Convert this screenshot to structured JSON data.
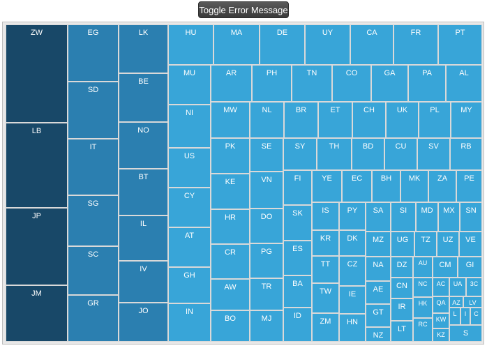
{
  "toolbar": {
    "toggle_label": "Toggle Error Message"
  },
  "chart_data": {
    "type": "treemap",
    "title": "",
    "colors": {
      "dark": "#184868",
      "mid": "#2b7fb0",
      "light": "#38a5d8"
    },
    "items": [
      "ZW",
      "LB",
      "JP",
      "JM",
      "EG",
      "SD",
      "IT",
      "SG",
      "SC",
      "GR",
      "LK",
      "BE",
      "NO",
      "BT",
      "IL",
      "IV",
      "JO",
      "HU",
      "MA",
      "DE",
      "UY",
      "CA",
      "FR",
      "PT",
      "MU",
      "NI",
      "US",
      "CY",
      "AT",
      "GH",
      "IN",
      "AR",
      "PH",
      "TN",
      "CO",
      "GA",
      "PA",
      "AL",
      "MW",
      "NL",
      "BR",
      "ET",
      "CH",
      "UK",
      "PL",
      "MY",
      "PK",
      "KE",
      "HR",
      "CR",
      "AW",
      "BO",
      "SE",
      "VN",
      "DO",
      "PG",
      "TR",
      "MJ",
      "SY",
      "TH",
      "BD",
      "CU",
      "SV",
      "RB",
      "FI",
      "SK",
      "ES",
      "BA",
      "ID",
      "YE",
      "EC",
      "BH",
      "MK",
      "ZA",
      "PE",
      "IS",
      "KR",
      "TT",
      "TW",
      "ZM",
      "PY",
      "DK",
      "CZ",
      "IE",
      "HN",
      "SA",
      "SI",
      "MD",
      "MX",
      "SN",
      "MZ",
      "UG",
      "TZ",
      "UZ",
      "VE",
      "NA",
      "AE",
      "GT",
      "NZ",
      "DZ",
      "AU",
      "CM",
      "GI",
      "CN",
      "IR",
      "LT",
      "NC",
      "HK",
      "RC",
      "AC",
      "QA",
      "KW",
      "KZ",
      "UA",
      "AZ",
      "LV",
      "3C",
      "L",
      "I",
      "C",
      "S"
    ]
  }
}
